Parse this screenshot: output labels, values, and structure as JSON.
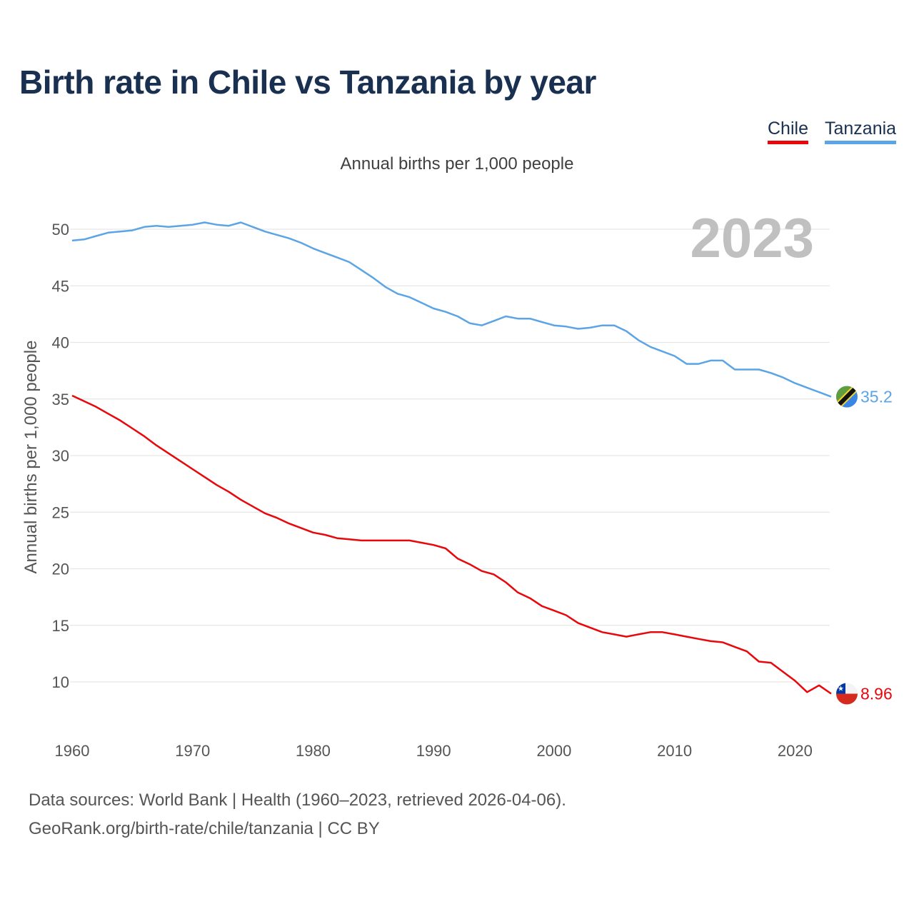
{
  "title": "Birth rate in Chile vs Tanzania by year",
  "subtitle": "Annual births per 1,000 people",
  "footer": {
    "line1": "Data sources: World Bank | Health (1960–2023, retrieved 2026-04-06).",
    "line2": "GeoRank.org/birth-rate/chile/tanzania | CC BY"
  },
  "chart_data": {
    "type": "line",
    "title": "Birth rate in Chile vs Tanzania by year",
    "subtitle": "Annual births per 1,000 people",
    "xlabel": "",
    "ylabel": "Annual births per 1,000 people",
    "year_label": "2023",
    "xlim": [
      1960,
      2023
    ],
    "ylim": [
      5,
      52
    ],
    "x_ticks": [
      1960,
      1970,
      1980,
      1990,
      2000,
      2010,
      2020
    ],
    "y_ticks": [
      10,
      15,
      20,
      25,
      30,
      35,
      40,
      45,
      50
    ],
    "grid": true,
    "legend": "top-right",
    "x": [
      1960,
      1961,
      1962,
      1963,
      1964,
      1965,
      1966,
      1967,
      1968,
      1969,
      1970,
      1971,
      1972,
      1973,
      1974,
      1975,
      1976,
      1977,
      1978,
      1979,
      1980,
      1981,
      1982,
      1983,
      1984,
      1985,
      1986,
      1987,
      1988,
      1989,
      1990,
      1991,
      1992,
      1993,
      1994,
      1995,
      1996,
      1997,
      1998,
      1999,
      2000,
      2001,
      2002,
      2003,
      2004,
      2005,
      2006,
      2007,
      2008,
      2009,
      2010,
      2011,
      2012,
      2013,
      2014,
      2015,
      2016,
      2017,
      2018,
      2019,
      2020,
      2021,
      2022,
      2023
    ],
    "series": [
      {
        "name": "Chile",
        "color": "#e8070b",
        "end_label": "8.96",
        "flag": "chile-flag",
        "values": [
          35.3,
          34.8,
          34.3,
          33.7,
          33.1,
          32.4,
          31.7,
          30.9,
          30.2,
          29.5,
          28.8,
          28.1,
          27.4,
          26.8,
          26.1,
          25.5,
          24.9,
          24.5,
          24.0,
          23.6,
          23.2,
          23.0,
          22.7,
          22.6,
          22.5,
          22.5,
          22.5,
          22.5,
          22.5,
          22.3,
          22.1,
          21.8,
          20.9,
          20.4,
          19.8,
          19.5,
          18.8,
          17.9,
          17.4,
          16.7,
          16.3,
          15.9,
          15.2,
          14.8,
          14.4,
          14.2,
          14.0,
          14.2,
          14.4,
          14.4,
          14.2,
          14.0,
          13.8,
          13.6,
          13.5,
          13.1,
          12.7,
          11.8,
          11.7,
          10.9,
          10.1,
          9.1,
          9.7,
          8.96
        ]
      },
      {
        "name": "Tanzania",
        "color": "#5ba4e5",
        "end_label": "35.2",
        "flag": "tanzania-flag",
        "values": [
          49.0,
          49.1,
          49.4,
          49.7,
          49.8,
          49.9,
          50.2,
          50.3,
          50.2,
          50.3,
          50.4,
          50.6,
          50.4,
          50.3,
          50.6,
          50.2,
          49.8,
          49.5,
          49.2,
          48.8,
          48.3,
          47.9,
          47.5,
          47.1,
          46.4,
          45.7,
          44.9,
          44.3,
          44.0,
          43.5,
          43.0,
          42.7,
          42.3,
          41.7,
          41.5,
          41.9,
          42.3,
          42.1,
          42.1,
          41.8,
          41.5,
          41.4,
          41.2,
          41.3,
          41.5,
          41.5,
          41.0,
          40.2,
          39.6,
          39.2,
          38.8,
          38.1,
          38.1,
          38.4,
          38.4,
          37.6,
          37.6,
          37.6,
          37.3,
          36.9,
          36.4,
          36.0,
          35.6,
          35.2
        ]
      }
    ]
  }
}
